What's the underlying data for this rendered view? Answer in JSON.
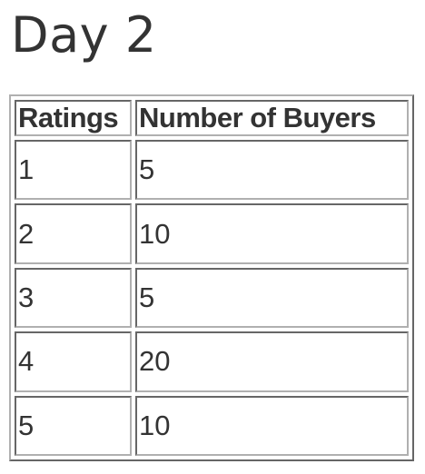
{
  "title": "Day 2",
  "table": {
    "headers": [
      "Ratings",
      "Number of Buyers"
    ],
    "rows": [
      [
        "1",
        "5"
      ],
      [
        "2",
        "10"
      ],
      [
        "3",
        "5"
      ],
      [
        "4",
        "20"
      ],
      [
        "5",
        "10"
      ]
    ]
  }
}
